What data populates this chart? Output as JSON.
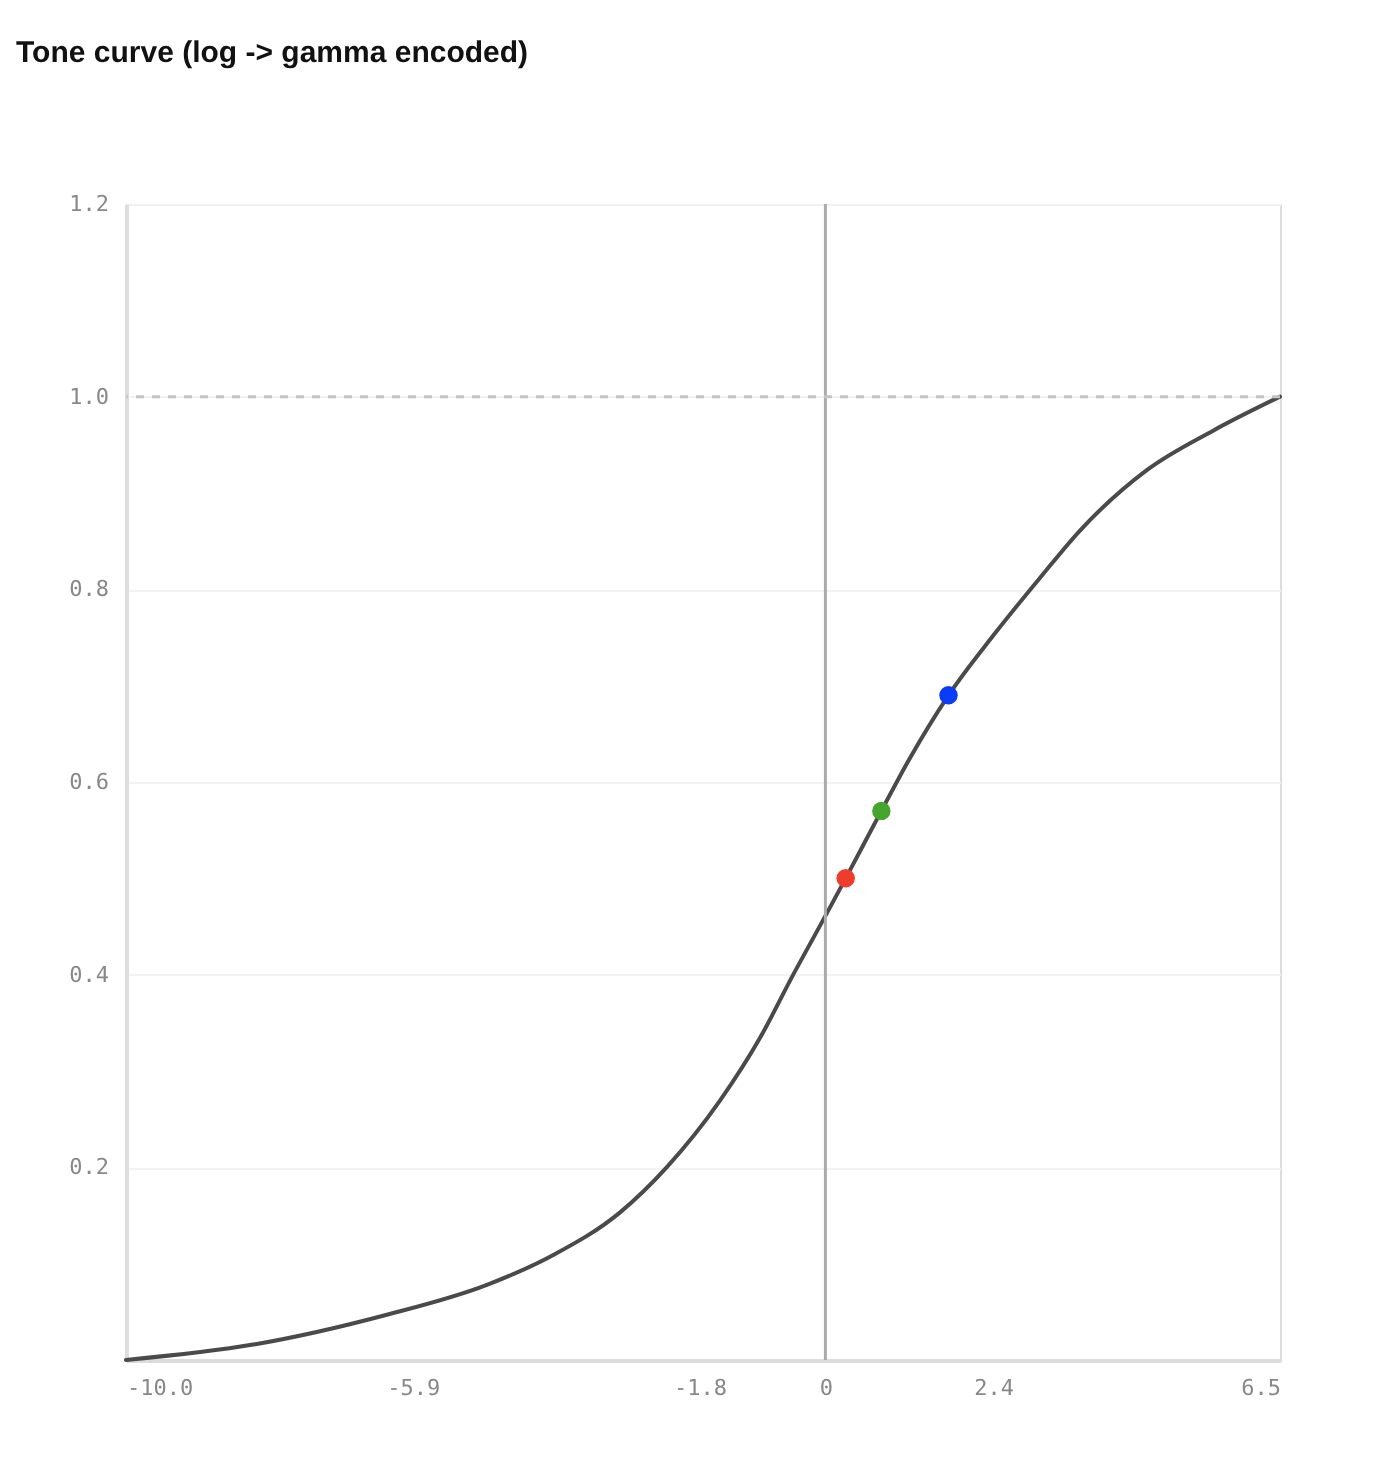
{
  "chart_data": {
    "type": "line",
    "title": "Tone curve (log -> gamma encoded)",
    "series": [
      {
        "color": "#4a4a4a",
        "x": [
          -10,
          -8.18,
          -6.27,
          -4.84,
          -3.89,
          -2.94,
          -2.27,
          -1.51,
          -0.93,
          -0.46,
          0,
          0.29,
          0.8,
          1.21,
          1.76,
          2.4,
          3.07,
          3.64,
          4.6,
          5.55,
          6.5
        ],
        "values": [
          0,
          0.016,
          0.047,
          0.078,
          0.109,
          0.153,
          0.2,
          0.269,
          0.335,
          0.4,
          0.461,
          0.5,
          0.57,
          0.625,
          0.69,
          0.752,
          0.812,
          0.861,
          0.924,
          0.965,
          1.0
        ]
      },
      {
        "type": "scatter",
        "x": [
          0.29,
          0.8,
          1.76
        ],
        "values": [
          0.5,
          0.57,
          0.69
        ],
        "colors": [
          "#f03c2c",
          "#46a52c",
          "#0a3cf5"
        ]
      }
    ],
    "xlim": [
      -10,
      6.5
    ],
    "xticks": [
      {
        "value": -10,
        "label": "-10.0"
      },
      -5.9,
      -1.8,
      0,
      2.4,
      6.5
    ],
    "ylim": [
      0,
      1.2
    ],
    "yticks": [
      0.2,
      0.4,
      0.6,
      0.8,
      {
        "value": 1.0,
        "label": "1.0"
      },
      1.2
    ],
    "grid": "y",
    "ref_lines": [
      {
        "axis": "x",
        "value": 0,
        "color": "#aaaaaa",
        "line_style": "solid"
      },
      {
        "axis": "y",
        "value": 1.0,
        "color": "#c4c4c4",
        "line_style": "dashed"
      }
    ]
  }
}
